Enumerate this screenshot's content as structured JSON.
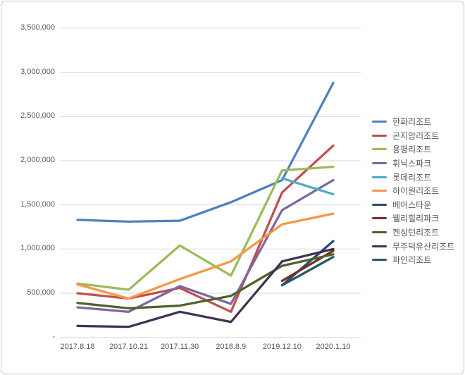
{
  "chart_data": {
    "type": "line",
    "title": "",
    "xlabel": "",
    "ylabel": "",
    "x_categories": [
      "2017.8.18",
      "2017.10.21",
      "2017.11.30",
      "2018.8.9",
      "2019.12.10",
      "2020.1.10"
    ],
    "y_axis": {
      "min": 0,
      "max": 3500000,
      "step": 500000,
      "tick_labels_top_down": [
        "3,500,000",
        "3,000,000",
        "2,500,000",
        "2,000,000",
        "1,500,000",
        "1,000,000",
        "500,000",
        "-"
      ]
    },
    "grid": true,
    "legend_position": "right",
    "series": [
      {
        "name": "한화리조트",
        "color": "#4F81BD",
        "values": [
          1330000,
          1310000,
          1320000,
          1530000,
          1780000,
          2880000
        ]
      },
      {
        "name": "곤지암리조트",
        "color": "#C0504D",
        "values": [
          500000,
          440000,
          560000,
          290000,
          1640000,
          2170000
        ]
      },
      {
        "name": "용평리조트",
        "color": "#9BBB59",
        "values": [
          610000,
          540000,
          1040000,
          700000,
          1890000,
          1930000
        ]
      },
      {
        "name": "휘닉스파크",
        "color": "#8064A2",
        "values": [
          340000,
          290000,
          580000,
          380000,
          1440000,
          1780000
        ]
      },
      {
        "name": "롯데리조트",
        "color": "#4BACC6",
        "values": [
          null,
          null,
          null,
          null,
          1800000,
          1620000
        ]
      },
      {
        "name": "하이원리조트",
        "color": "#F79646",
        "values": [
          600000,
          440000,
          660000,
          860000,
          1280000,
          1400000
        ]
      },
      {
        "name": "베어스타운",
        "color": "#1F4E79",
        "values": [
          null,
          null,
          null,
          null,
          590000,
          1090000
        ]
      },
      {
        "name": "웰리힐리파크",
        "color": "#7B2C27",
        "values": [
          null,
          null,
          null,
          null,
          640000,
          980000
        ]
      },
      {
        "name": "켄싱턴리조트",
        "color": "#4F6228",
        "values": [
          390000,
          330000,
          360000,
          470000,
          810000,
          940000
        ]
      },
      {
        "name": "무주덕유산리조트",
        "color": "#403152",
        "values": [
          130000,
          120000,
          290000,
          175000,
          860000,
          1000000
        ]
      },
      {
        "name": "파인리조트",
        "color": "#215968",
        "values": [
          null,
          null,
          null,
          null,
          590000,
          910000
        ]
      }
    ]
  },
  "colors": {
    "background": "#FFFFFF",
    "gridline": "#D9D9D9",
    "axis_text": "#595959",
    "legend_text": "#595959",
    "frame_border": "#C6C6C6"
  }
}
